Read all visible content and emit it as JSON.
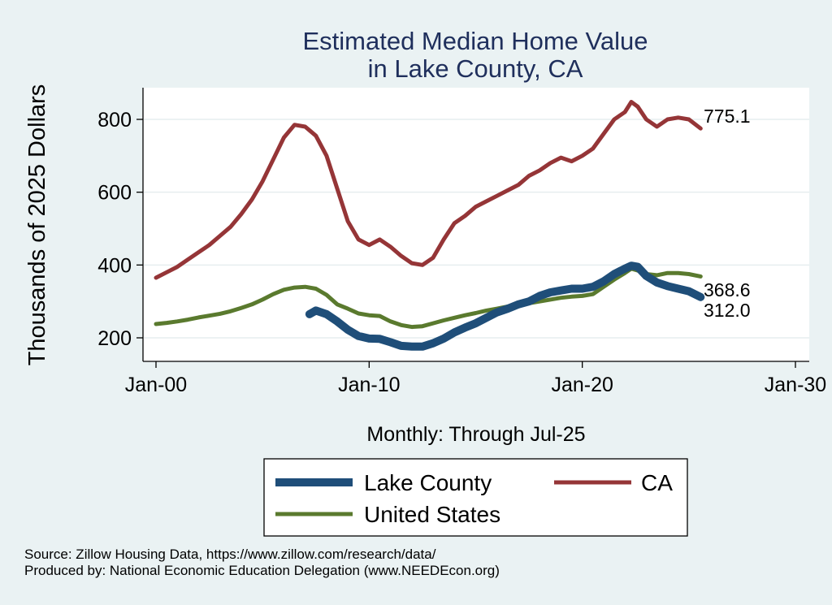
{
  "chart_data": {
    "type": "line",
    "title": [
      "Estimated Median Home Value",
      "in Lake County, CA"
    ],
    "ylabel": "Thousands of 2025 Dollars",
    "xlabel": "Monthly: Through Jul-25",
    "ylim": [
      175,
      880
    ],
    "xlim": [
      1999.6,
      2030.2
    ],
    "yticks": [
      {
        "value": 200,
        "label": "200"
      },
      {
        "value": 400,
        "label": "400"
      },
      {
        "value": 600,
        "label": "600"
      },
      {
        "value": 800,
        "label": "800"
      }
    ],
    "xticks": [
      {
        "value": 2000,
        "label": "Jan-00"
      },
      {
        "value": 2010,
        "label": "Jan-10"
      },
      {
        "value": 2020,
        "label": "Jan-20"
      },
      {
        "value": 2030,
        "label": "Jan-30"
      }
    ],
    "grid": true,
    "series": [
      {
        "name": "CA",
        "color": "#953537",
        "end_label": "775.1",
        "x": [
          2000.0,
          2000.5,
          2001.0,
          2001.5,
          2002.0,
          2002.5,
          2003.0,
          2003.5,
          2004.0,
          2004.5,
          2005.0,
          2005.5,
          2006.0,
          2006.5,
          2007.0,
          2007.5,
          2008.0,
          2008.5,
          2009.0,
          2009.5,
          2010.0,
          2010.5,
          2011.0,
          2011.5,
          2012.0,
          2012.5,
          2013.0,
          2013.5,
          2014.0,
          2014.5,
          2015.0,
          2015.5,
          2016.0,
          2016.5,
          2017.0,
          2017.5,
          2018.0,
          2018.5,
          2019.0,
          2019.5,
          2020.0,
          2020.5,
          2021.0,
          2021.5,
          2022.0,
          2022.3,
          2022.6,
          2023.0,
          2023.5,
          2024.0,
          2024.5,
          2025.0,
          2025.55
        ],
        "values": [
          365,
          380,
          395,
          415,
          435,
          455,
          480,
          505,
          540,
          580,
          630,
          690,
          750,
          785,
          780,
          755,
          700,
          610,
          520,
          470,
          455,
          470,
          450,
          425,
          405,
          400,
          420,
          470,
          515,
          535,
          560,
          575,
          590,
          605,
          620,
          645,
          660,
          680,
          695,
          685,
          700,
          720,
          760,
          800,
          820,
          848,
          835,
          800,
          780,
          800,
          805,
          800,
          775.1
        ]
      },
      {
        "name": "United States",
        "color": "#5a7a2e",
        "end_label": "368.6",
        "x": [
          2000.0,
          2000.5,
          2001.0,
          2001.5,
          2002.0,
          2002.5,
          2003.0,
          2003.5,
          2004.0,
          2004.5,
          2005.0,
          2005.5,
          2006.0,
          2006.5,
          2007.0,
          2007.5,
          2008.0,
          2008.5,
          2009.0,
          2009.5,
          2010.0,
          2010.5,
          2011.0,
          2011.5,
          2012.0,
          2012.5,
          2013.0,
          2013.5,
          2014.0,
          2014.5,
          2015.0,
          2015.5,
          2016.0,
          2016.5,
          2017.0,
          2017.5,
          2018.0,
          2018.5,
          2019.0,
          2019.5,
          2020.0,
          2020.5,
          2021.0,
          2021.5,
          2022.0,
          2022.3,
          2022.6,
          2023.0,
          2023.5,
          2024.0,
          2024.5,
          2025.0,
          2025.55
        ],
        "values": [
          238,
          241,
          245,
          250,
          256,
          261,
          266,
          273,
          282,
          292,
          305,
          320,
          332,
          338,
          340,
          335,
          318,
          292,
          280,
          267,
          262,
          260,
          245,
          235,
          230,
          232,
          240,
          248,
          255,
          262,
          268,
          275,
          280,
          286,
          290,
          295,
          300,
          305,
          310,
          313,
          315,
          320,
          340,
          360,
          378,
          390,
          385,
          375,
          372,
          378,
          378,
          375,
          368.6
        ]
      },
      {
        "name": "Lake County",
        "color": "#1f4e79",
        "end_label": "312.0",
        "x": [
          2007.2,
          2007.5,
          2008.0,
          2008.5,
          2009.0,
          2009.5,
          2010.0,
          2010.5,
          2011.0,
          2011.5,
          2012.0,
          2012.5,
          2013.0,
          2013.5,
          2014.0,
          2014.5,
          2015.0,
          2015.5,
          2016.0,
          2016.5,
          2017.0,
          2017.5,
          2018.0,
          2018.5,
          2019.0,
          2019.5,
          2020.0,
          2020.5,
          2021.0,
          2021.5,
          2022.0,
          2022.3,
          2022.6,
          2023.0,
          2023.5,
          2024.0,
          2024.5,
          2025.0,
          2025.55
        ],
        "values": [
          265,
          275,
          265,
          245,
          222,
          205,
          198,
          197,
          188,
          178,
          176,
          176,
          185,
          198,
          215,
          228,
          240,
          255,
          270,
          280,
          292,
          300,
          315,
          325,
          330,
          335,
          335,
          340,
          355,
          375,
          390,
          398,
          395,
          370,
          352,
          342,
          335,
          328,
          312.0
        ]
      }
    ]
  },
  "legend": {
    "items": [
      {
        "label": "Lake County",
        "color": "#1f4e79"
      },
      {
        "label": "CA",
        "color": "#953537"
      },
      {
        "label": "United States",
        "color": "#5a7a2e"
      }
    ]
  },
  "source": {
    "line1": "Source: Zillow Housing Data, https://www.zillow.com/research/data/",
    "line2": "Produced by: National Economic Education Delegation (www.NEEDEcon.org)"
  }
}
